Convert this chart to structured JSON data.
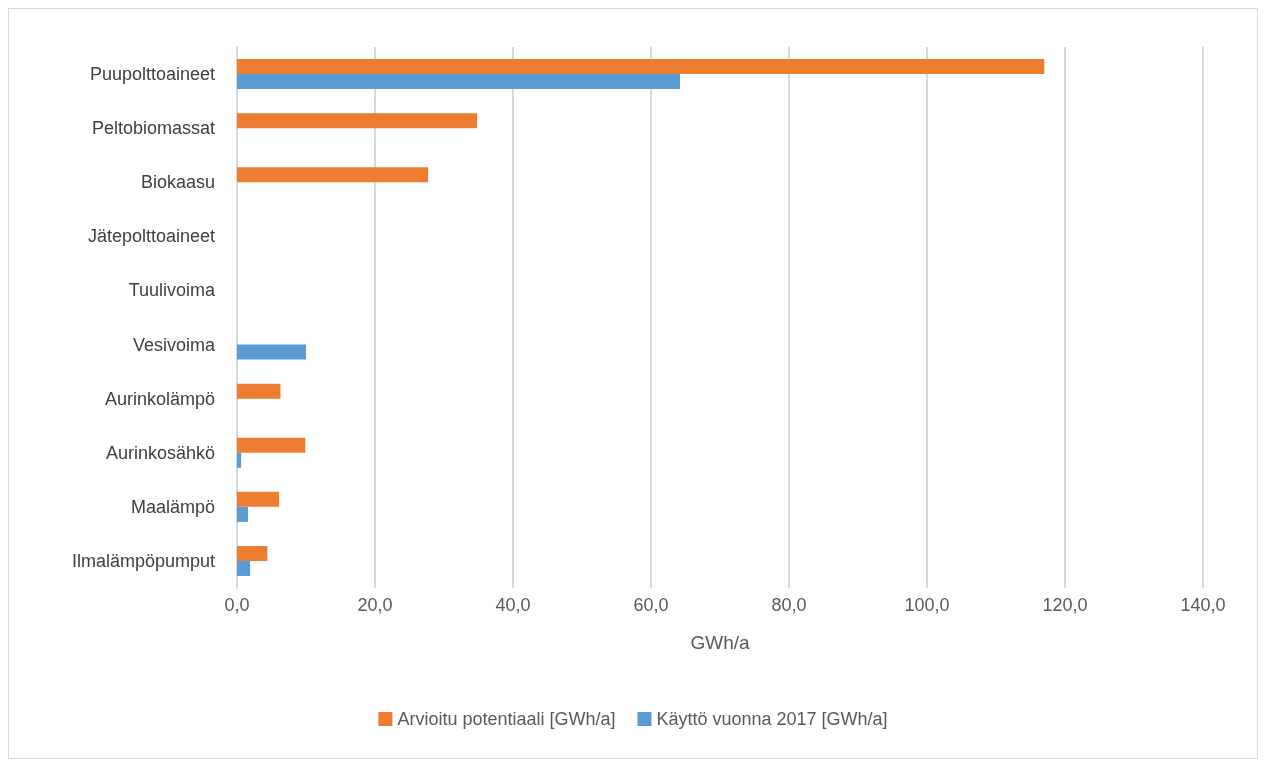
{
  "chart_data": {
    "type": "bar",
    "orientation": "horizontal",
    "xlabel": "GWh/a",
    "categories": [
      "Puupolttoaineet",
      "Peltobiomassat",
      "Biokaasu",
      "Jätepolttoaineet",
      "Tuulivoima",
      "Vesivoima",
      "Aurinkolämpö",
      "Aurinkosähkö",
      "Maalämpö",
      "Ilmalämpöpumput"
    ],
    "series": [
      {
        "name": "Arvioitu potentiaali [GWh/a]",
        "color": "#ed7d31",
        "values": [
          117,
          34.8,
          27.7,
          0,
          0,
          0,
          6.3,
          9.9,
          6.1,
          4.4
        ]
      },
      {
        "name": "Käyttö vuonna 2017 [GWh/a]",
        "color": "#5b9bd5",
        "values": [
          64.2,
          0,
          0,
          0,
          0,
          10,
          0,
          0.6,
          1.6,
          1.9
        ]
      }
    ],
    "xlim": [
      0,
      140
    ],
    "xticks": [
      {
        "value": 0,
        "label": "0,0"
      },
      {
        "value": 20,
        "label": "20,0"
      },
      {
        "value": 40,
        "label": "40,0"
      },
      {
        "value": 60,
        "label": "60,0"
      },
      {
        "value": 80,
        "label": "80,0"
      },
      {
        "value": 100,
        "label": "100,0"
      },
      {
        "value": 120,
        "label": "120,0"
      },
      {
        "value": 140,
        "label": "140,0"
      }
    ],
    "grid": "x",
    "legend": "bottom"
  }
}
